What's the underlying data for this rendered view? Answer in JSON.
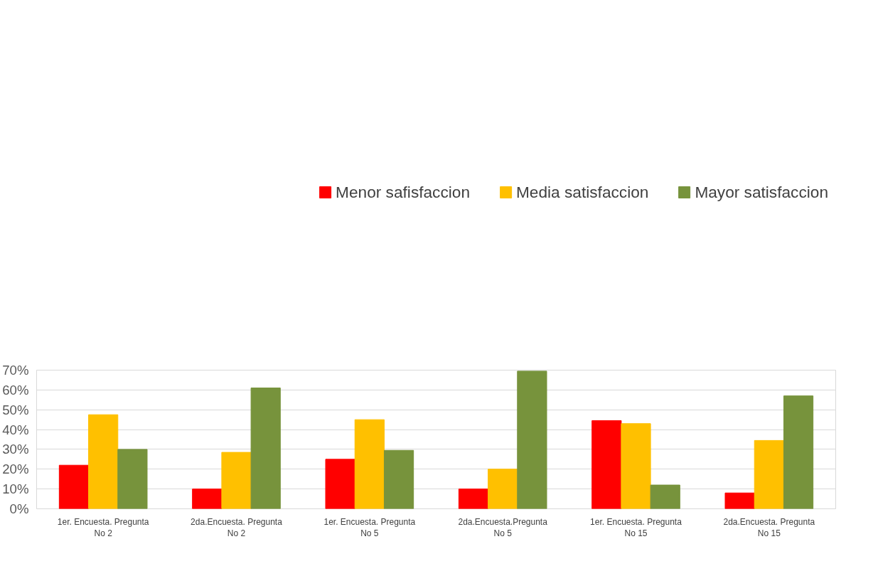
{
  "chart_data": {
    "type": "bar",
    "categories": [
      "1er. Encuesta. Pregunta\nNo 2",
      "2da.Encuesta. Pregunta\nNo 2",
      "1er. Encuesta. Pregunta\nNo 5",
      "2da.Encuesta.Pregunta\nNo 5",
      "1er. Encuesta. Pregunta\nNo 15",
      "2da.Encuesta. Pregunta\nNo 15"
    ],
    "series": [
      {
        "name": "Menor safisfaccion",
        "color": "#ff0000",
        "values": [
          22,
          10,
          25,
          10,
          44.5,
          8
        ]
      },
      {
        "name": "Media satisfaccion",
        "color": "#ffc000",
        "values": [
          47.5,
          28.5,
          45,
          20,
          43,
          34.5
        ]
      },
      {
        "name": "Mayor satisfaccion",
        "color": "#77933c",
        "values": [
          30,
          61,
          29.5,
          69.5,
          12,
          57
        ]
      }
    ],
    "ylim": [
      0,
      70
    ],
    "yticks": [
      {
        "value": 0,
        "label": "0%"
      },
      {
        "value": 10,
        "label": "10%"
      },
      {
        "value": 20,
        "label": "20%"
      },
      {
        "value": 30,
        "label": "30%"
      },
      {
        "value": 40,
        "label": "40%"
      },
      {
        "value": 50,
        "label": "50%"
      },
      {
        "value": 60,
        "label": "60%"
      },
      {
        "value": 70,
        "label": "70%"
      }
    ],
    "grid": "y",
    "legend": "top"
  }
}
